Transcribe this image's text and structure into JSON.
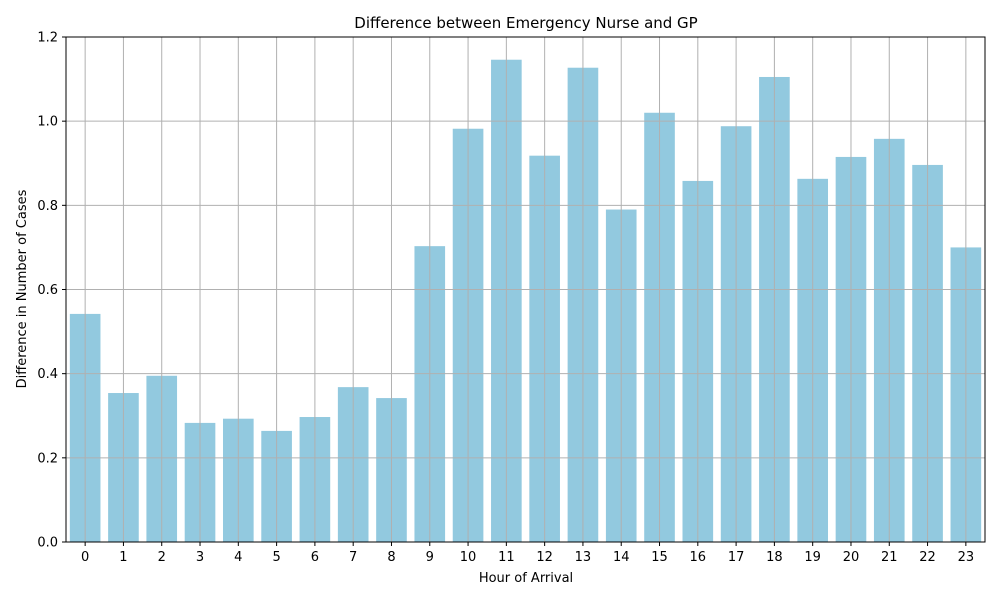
{
  "chart_data": {
    "type": "bar",
    "title": "Difference between Emergency Nurse and GP",
    "xlabel": "Hour of Arrival",
    "ylabel": "Difference in Number of Cases",
    "categories": [
      "0",
      "1",
      "2",
      "3",
      "4",
      "5",
      "6",
      "7",
      "8",
      "9",
      "10",
      "11",
      "12",
      "13",
      "14",
      "15",
      "16",
      "17",
      "18",
      "19",
      "20",
      "21",
      "22",
      "23"
    ],
    "values": [
      0.542,
      0.354,
      0.395,
      0.283,
      0.293,
      0.264,
      0.297,
      0.368,
      0.342,
      0.703,
      0.982,
      1.146,
      0.918,
      1.127,
      0.79,
      1.02,
      0.858,
      0.988,
      1.105,
      0.863,
      0.915,
      0.958,
      0.896,
      0.7
    ],
    "ylim": [
      0,
      1.2
    ],
    "yticks": [
      "0.0",
      "0.2",
      "0.4",
      "0.6",
      "0.8",
      "1.0",
      "1.2"
    ],
    "grid": true,
    "bar_color": "#92c9df",
    "grid_color": "#b0b0b0"
  }
}
